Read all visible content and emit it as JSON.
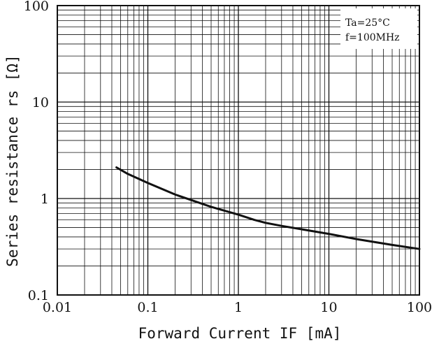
{
  "chart_data": {
    "type": "line",
    "title": "",
    "xlabel": "Forward Current  IF [mA]",
    "ylabel": "Series resistance  rs [Ω]",
    "x_scale": "log",
    "y_scale": "log",
    "xlim": [
      0.01,
      100
    ],
    "ylim": [
      0.1,
      100
    ],
    "x_ticks": [
      "0.01",
      "0.1",
      "1",
      "10",
      "100"
    ],
    "y_ticks": [
      "0.1",
      "1",
      "10",
      "100"
    ],
    "grid": true,
    "annotation": [
      "Ta=25°C",
      "f=100MHz"
    ],
    "annotation_position": "top-right",
    "series": [
      {
        "x": [
          0.045,
          0.06,
          0.1,
          0.2,
          0.5,
          1,
          1.5,
          2,
          3,
          5,
          10,
          20,
          50,
          100
        ],
        "y": [
          2.1,
          1.8,
          1.45,
          1.1,
          0.82,
          0.68,
          0.6,
          0.56,
          0.52,
          0.48,
          0.43,
          0.38,
          0.33,
          0.3
        ]
      }
    ],
    "colors": {
      "line": "#111111",
      "grid": "#111111",
      "background": "#ffffff"
    }
  }
}
